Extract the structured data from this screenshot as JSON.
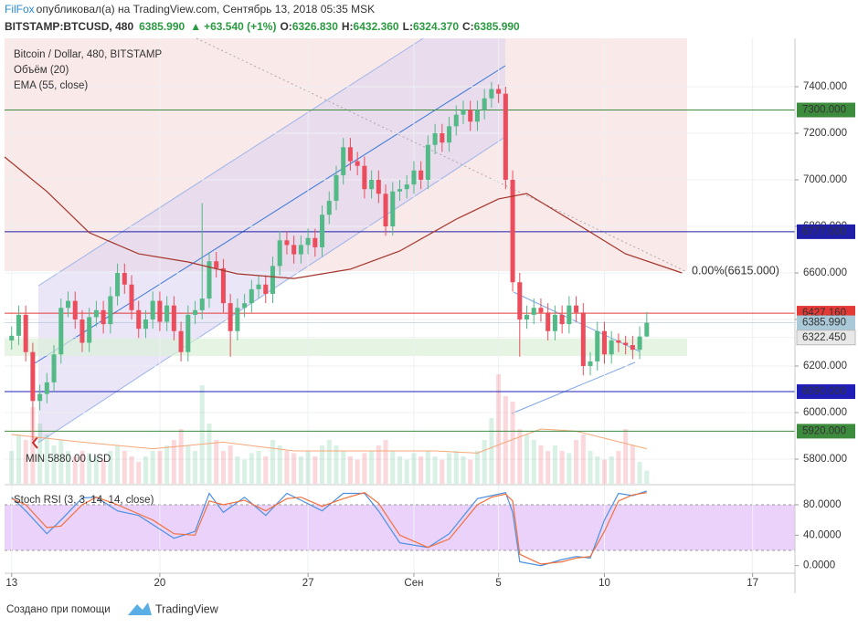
{
  "header": {
    "author": "FilFox",
    "published": "опубликовал(а) на TradingView.com, Сентябрь 13, 2018 05:35 MSK",
    "symbol": "BITSTAMP:BTCUSD, 480",
    "price": "6385.990",
    "change": "+63.540 (+1%)",
    "ohlc": [
      {
        "key": "O:",
        "value": "6326.830"
      },
      {
        "key": "H:",
        "value": "6432.360"
      },
      {
        "key": "L:",
        "value": "6324.370"
      },
      {
        "key": "C:",
        "value": "6385.990"
      }
    ]
  },
  "footer": {
    "text": "Создано при помощи",
    "brand": "TradingView"
  },
  "chart_data": [
    {
      "type": "candlestick",
      "title": "Bitcoin / Dollar, 480, BITSTAMP",
      "up_color": "#53b987",
      "down_color": "#eb4d5c",
      "grid": true,
      "xlim": [
        -1,
        111
      ],
      "xticks": [
        {
          "value": 0,
          "label": "13"
        },
        {
          "value": 21,
          "label": "20"
        },
        {
          "value": 42,
          "label": "27"
        },
        {
          "value": 57,
          "label": "Сен"
        },
        {
          "value": 69,
          "label": "5"
        },
        {
          "value": 84,
          "label": "10"
        },
        {
          "value": 105,
          "label": "17"
        }
      ],
      "ylim": [
        5700,
        7600
      ],
      "yticks": [
        {
          "value": 5800,
          "label": "5800.000"
        },
        {
          "value": 6000,
          "label": "6000.000"
        },
        {
          "value": 6200,
          "label": "6200.000"
        },
        {
          "value": 6400,
          "label": "6400.000"
        },
        {
          "value": 6600,
          "label": "6600.000"
        },
        {
          "value": 6800,
          "label": "6800.000"
        },
        {
          "value": 7000,
          "label": "7000.000"
        },
        {
          "value": 7200,
          "label": "7200.000"
        },
        {
          "value": 7400,
          "label": "7400.000"
        }
      ],
      "open": [
        6310,
        6330,
        6420,
        6260,
        6050,
        6080,
        6130,
        6250,
        6450,
        6480,
        6400,
        6300,
        6410,
        6440,
        6380,
        6500,
        6600,
        6550,
        6440,
        6360,
        6400,
        6480,
        6390,
        6460,
        6350,
        6260,
        6420,
        6440,
        6490,
        6650,
        6620,
        6470,
        6350,
        6450,
        6470,
        6530,
        6550,
        6510,
        6630,
        6740,
        6720,
        6680,
        6720,
        6750,
        6710,
        6850,
        6910,
        7020,
        7140,
        7080,
        7060,
        6960,
        7000,
        6940,
        6800,
        6950,
        6960,
        6980,
        7040,
        7000,
        7150,
        7200,
        7160,
        7230,
        7280,
        7300,
        7250,
        7300,
        7350,
        7390,
        7370,
        7000,
        6560,
        6400,
        6420,
        6450,
        6430,
        6350,
        6420,
        6380,
        6460,
        6430,
        6200,
        6220,
        6350,
        6250,
        6310,
        6300,
        6290,
        6270,
        6326.83
      ],
      "high": [
        6370,
        6460,
        6460,
        6300,
        6120,
        6170,
        6290,
        6490,
        6520,
        6520,
        6440,
        6450,
        6480,
        6480,
        6540,
        6640,
        6640,
        6590,
        6480,
        6440,
        6520,
        6520,
        6500,
        6500,
        6390,
        6460,
        6480,
        6900,
        6690,
        6690,
        6660,
        6510,
        6490,
        6510,
        6570,
        6590,
        6590,
        6670,
        6780,
        6780,
        6760,
        6760,
        6790,
        6790,
        6890,
        6950,
        7060,
        7180,
        7180,
        7120,
        7100,
        7040,
        7040,
        6980,
        6990,
        7000,
        7020,
        7080,
        7080,
        7190,
        7240,
        7240,
        7270,
        7320,
        7340,
        7340,
        7340,
        7390,
        7420,
        7410,
        7400,
        7040,
        6600,
        6460,
        6490,
        6490,
        6470,
        6460,
        6460,
        6500,
        6500,
        6470,
        6260,
        6390,
        6390,
        6350,
        6340,
        6330,
        6330,
        6370,
        6432.36
      ],
      "low": [
        6270,
        6290,
        6220,
        5880,
        6010,
        6040,
        6090,
        6210,
        6410,
        6360,
        6260,
        6260,
        6370,
        6340,
        6340,
        6460,
        6510,
        6400,
        6320,
        6320,
        6360,
        6350,
        6350,
        6310,
        6220,
        6220,
        6380,
        6400,
        6450,
        6580,
        6430,
        6240,
        6310,
        6410,
        6430,
        6490,
        6470,
        6470,
        6590,
        6680,
        6640,
        6640,
        6680,
        6670,
        6670,
        6810,
        6870,
        6980,
        7040,
        7020,
        6920,
        6920,
        6900,
        6760,
        6760,
        6910,
        6920,
        6940,
        6960,
        6960,
        7110,
        7120,
        7120,
        7190,
        7240,
        7210,
        7210,
        7260,
        7310,
        7330,
        6960,
        6520,
        6240,
        6360,
        6380,
        6390,
        6310,
        6310,
        6340,
        6340,
        6390,
        6160,
        6160,
        6180,
        6210,
        6210,
        6260,
        6250,
        6230,
        6230,
        6324.37
      ],
      "close": [
        6330,
        6420,
        6260,
        6050,
        6080,
        6130,
        6250,
        6450,
        6480,
        6400,
        6300,
        6410,
        6440,
        6380,
        6500,
        6600,
        6550,
        6440,
        6360,
        6400,
        6480,
        6390,
        6460,
        6350,
        6260,
        6420,
        6440,
        6490,
        6650,
        6620,
        6470,
        6350,
        6450,
        6470,
        6530,
        6550,
        6510,
        6630,
        6740,
        6720,
        6680,
        6720,
        6750,
        6710,
        6850,
        6910,
        7020,
        7140,
        7080,
        7060,
        6960,
        7000,
        6940,
        6800,
        6950,
        6960,
        6980,
        7040,
        7000,
        7150,
        7200,
        7160,
        7230,
        7280,
        7300,
        7250,
        7300,
        7350,
        7390,
        7370,
        7000,
        6560,
        6400,
        6420,
        6450,
        6430,
        6350,
        6420,
        6380,
        6460,
        6430,
        6200,
        6220,
        6350,
        6250,
        6310,
        6300,
        6290,
        6270,
        6326.83,
        6385.99
      ],
      "series": [
        {
          "name": "EMA (55, close)",
          "color": "#a5342a",
          "x": [
            -1,
            5,
            11,
            18,
            25,
            32,
            40,
            48,
            55,
            63,
            69,
            73,
            79,
            87,
            95
          ],
          "values": [
            7098,
            6950,
            6773,
            6682,
            6647,
            6596,
            6576,
            6616,
            6694,
            6831,
            6918,
            6941,
            6831,
            6682,
            6600
          ]
        }
      ],
      "levels": [
        {
          "value": 7300,
          "label": "7300.000",
          "color": "#3d8b3d"
        },
        {
          "value": 6777,
          "label": "6777.000",
          "color": "#1f1fa8"
        },
        {
          "value": 6427.16,
          "label": "6427.160",
          "color": "#e53935"
        },
        {
          "value": 6385.99,
          "label": "6385.990",
          "color": "#a9c9d8"
        },
        {
          "value": 6322.45,
          "label": "6322.450",
          "color": "#e8e8e8"
        },
        {
          "value": 6090,
          "label": "6090.000",
          "color": "#1f1fb8"
        },
        {
          "value": 5920,
          "label": "5920.000",
          "color": "#3d8b3d"
        }
      ],
      "annotations": [
        "0.00%(6615.000)",
        "MIN 5880.00 USD"
      ]
    },
    {
      "type": "bar",
      "name": "Объём (20)",
      "ylim": [
        0,
        100
      ],
      "values": [
        30,
        45,
        40,
        70,
        55,
        45,
        35,
        40,
        30,
        25,
        30,
        28,
        25,
        22,
        30,
        35,
        30,
        25,
        20,
        25,
        30,
        30,
        35,
        40,
        50,
        35,
        30,
        90,
        55,
        40,
        30,
        35,
        25,
        22,
        28,
        30,
        25,
        40,
        35,
        30,
        28,
        25,
        30,
        25,
        35,
        40,
        35,
        30,
        25,
        22,
        28,
        30,
        35,
        40,
        30,
        25,
        22,
        28,
        25,
        30,
        25,
        22,
        28,
        30,
        25,
        22,
        30,
        40,
        60,
        100,
        80,
        75,
        50,
        45,
        40,
        35,
        30,
        35,
        30,
        28,
        40,
        45,
        30,
        25,
        22,
        25,
        30,
        50,
        35,
        20,
        12
      ],
      "ma": {
        "color": "#f5a878",
        "x": [
          0,
          10,
          20,
          30,
          40,
          50,
          60,
          66,
          70,
          75,
          80,
          85,
          90
        ],
        "values": [
          45,
          38,
          32,
          38,
          30,
          30,
          30,
          28,
          38,
          50,
          48,
          40,
          32
        ]
      }
    },
    {
      "type": "line",
      "title": "Stoch RSI (3, 3, 14, 14, close)",
      "ylim": [
        -10,
        104
      ],
      "yticks": [
        {
          "value": 0,
          "label": "0.0000"
        },
        {
          "value": 40,
          "label": "40.0000"
        },
        {
          "value": 80,
          "label": "80.0000"
        }
      ],
      "x": [
        0,
        2,
        5,
        7,
        10,
        12,
        15,
        18,
        20,
        23,
        26,
        28,
        30,
        33,
        36,
        39,
        41,
        44,
        47,
        50,
        52,
        55,
        59,
        62,
        66,
        68,
        70,
        71,
        72,
        75,
        78,
        80,
        82,
        84,
        86,
        88,
        90
      ],
      "series": [
        {
          "color": "#4a90e2",
          "values": [
            90,
            72,
            42,
            60,
            89,
            90,
            72,
            66,
            54,
            36,
            45,
            95,
            70,
            90,
            66,
            95,
            86,
            72,
            95,
            95,
            72,
            30,
            24,
            42,
            88,
            92,
            96,
            70,
            5,
            0,
            8,
            12,
            10,
            60,
            95,
            92,
            98
          ]
        },
        {
          "color": "#f0703c",
          "values": [
            88,
            80,
            50,
            52,
            80,
            90,
            80,
            68,
            60,
            42,
            40,
            85,
            80,
            86,
            72,
            88,
            90,
            78,
            88,
            96,
            82,
            40,
            24,
            35,
            80,
            90,
            94,
            85,
            15,
            2,
            5,
            10,
            12,
            45,
            85,
            93,
            96
          ]
        }
      ]
    }
  ]
}
